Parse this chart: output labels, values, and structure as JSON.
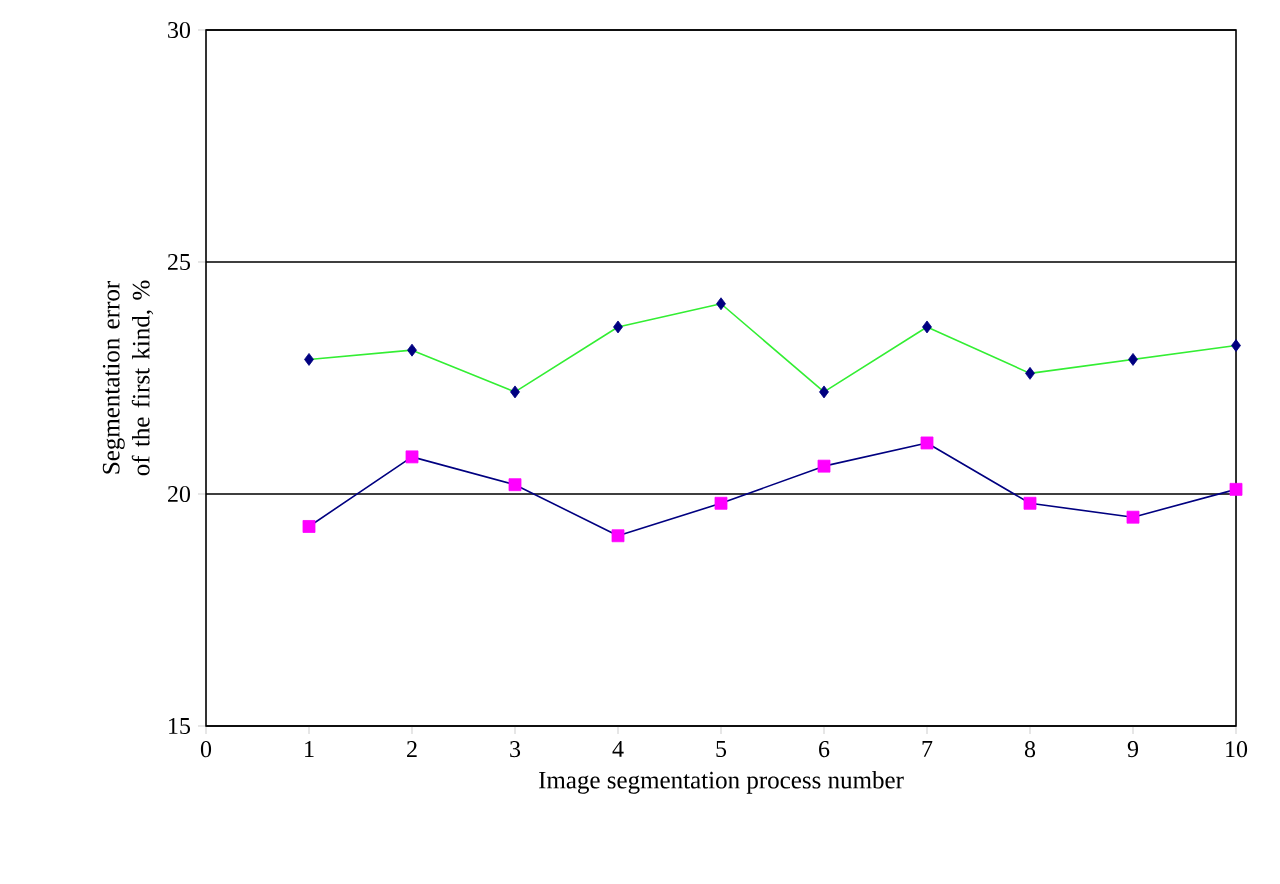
{
  "chart_data": {
    "type": "line",
    "xlabel": "Image segmentation process number",
    "ylabel": "Segmentation error of the first kind, %",
    "x": [
      1,
      2,
      3,
      4,
      5,
      6,
      7,
      8,
      9,
      10
    ],
    "series": [
      {
        "color": "#33ee33",
        "colors": [
          "#000080",
          "#000080",
          "#000080",
          "#000080",
          "#000080",
          "#000080",
          "#000080",
          "#000080",
          "#000080",
          "#000080"
        ],
        "marker": "diamond",
        "values": [
          22.9,
          23.1,
          22.2,
          23.6,
          24.1,
          22.2,
          23.6,
          22.6,
          22.9,
          23.2
        ]
      },
      {
        "color": "#000080",
        "colors": [
          "#ff00ff",
          "#ff00ff",
          "#ff00ff",
          "#ff00ff",
          "#ff00ff",
          "#ff00ff",
          "#ff00ff",
          "#ff00ff",
          "#ff00ff",
          "#ff00ff"
        ],
        "marker": "square",
        "values": [
          19.3,
          20.8,
          20.2,
          19.1,
          19.8,
          20.6,
          21.1,
          19.8,
          19.5,
          20.1
        ]
      }
    ],
    "xlim": [
      0,
      10
    ],
    "xticks": [
      0,
      1,
      2,
      3,
      4,
      5,
      6,
      7,
      8,
      9,
      10
    ],
    "ylim": [
      15,
      30
    ],
    "yticks": [
      15,
      20,
      25,
      30
    ],
    "grid": "y",
    "line_style": "solid"
  }
}
